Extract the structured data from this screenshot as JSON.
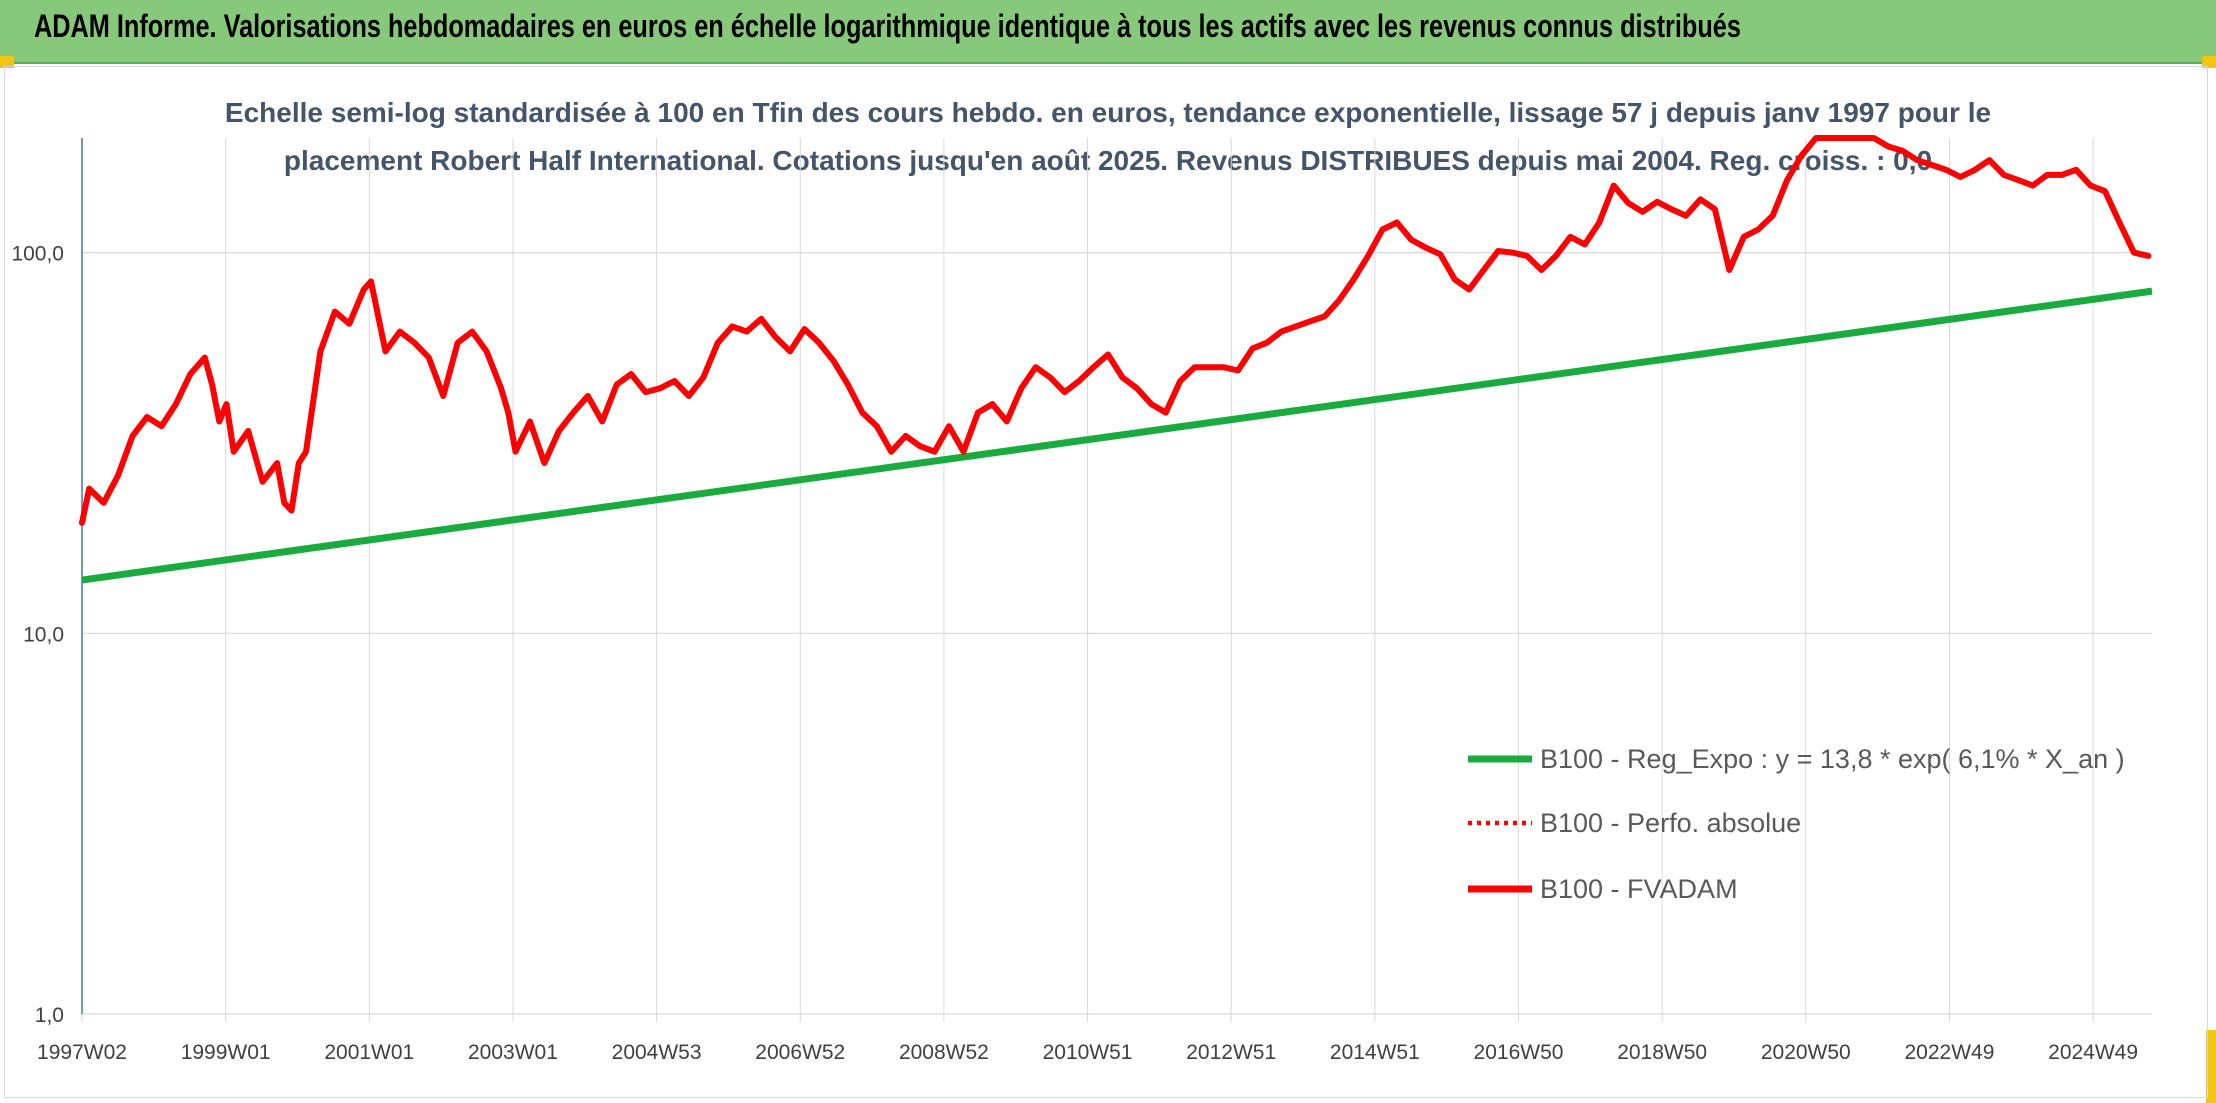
{
  "header": {
    "title": "ADAM Informe. Valorisations hebdomadaires en euros en échelle logarithmique identique à tous les actifs avec les revenus connus distribués"
  },
  "colors": {
    "banner": "#87c97a",
    "trend": "#1aab3f",
    "fvadam": "#ff0000",
    "perf": "#ff0000",
    "grid": "#d9d9d9",
    "accent": "#f1c40f"
  },
  "chart_data": {
    "type": "line",
    "subtitle_lines": [
      "Echelle semi-log standardisée à 100 en Tfin des cours hebdo. en euros, tendance exponentielle, lissage 57 j depuis janv 1997 pour le",
      "placement Robert Half International. Cotations jusqu'en août 2025. Revenus DISTRIBUES depuis mai 2004. Reg. croiss. : 0,0"
    ],
    "y_scale": "log",
    "ylim": [
      1,
      200
    ],
    "y_ticks": [
      "1,0",
      "10,0",
      "100,0"
    ],
    "y_tick_values": [
      1,
      10,
      100
    ],
    "x_tick_labels": [
      "1997W02",
      "1999W01",
      "2001W01",
      "2003W01",
      "2004W53",
      "2006W52",
      "2008W52",
      "2010W51",
      "2012W51",
      "2014W51",
      "2016W50",
      "2018W50",
      "2020W50",
      "2022W49",
      "2024W49"
    ],
    "xlim": [
      1997.0,
      2025.65
    ],
    "legend": [
      "B100 - Reg_Expo : y = 13,8 * exp( 6,1% *  X_an )",
      "B100 - Perfo. absolue",
      "B100 - FVADAM"
    ],
    "legend_position": "right",
    "trend": {
      "a": 13.8,
      "rate": 0.061
    },
    "series": [
      {
        "name": "B100 - FVADAM",
        "x": [
          1997.0,
          1997.1,
          1997.3,
          1997.5,
          1997.7,
          1997.9,
          1998.1,
          1998.3,
          1998.5,
          1998.7,
          1998.8,
          1998.9,
          1999.0,
          1999.1,
          1999.3,
          1999.5,
          1999.7,
          1999.8,
          1999.9,
          2000.0,
          2000.1,
          2000.3,
          2000.5,
          2000.7,
          2000.9,
          2001.0,
          2001.2,
          2001.4,
          2001.6,
          2001.8,
          2002.0,
          2002.2,
          2002.4,
          2002.6,
          2002.8,
          2002.9,
          2003.0,
          2003.2,
          2003.4,
          2003.6,
          2003.8,
          2004.0,
          2004.2,
          2004.4,
          2004.6,
          2004.8,
          2005.0,
          2005.2,
          2005.4,
          2005.6,
          2005.8,
          2006.0,
          2006.2,
          2006.4,
          2006.6,
          2006.8,
          2007.0,
          2007.2,
          2007.4,
          2007.6,
          2007.8,
          2008.0,
          2008.2,
          2008.4,
          2008.6,
          2008.8,
          2009.0,
          2009.2,
          2009.4,
          2009.6,
          2009.8,
          2010.0,
          2010.2,
          2010.4,
          2010.6,
          2010.8,
          2011.0,
          2011.2,
          2011.4,
          2011.6,
          2011.8,
          2012.0,
          2012.2,
          2012.4,
          2012.6,
          2012.8,
          2013.0,
          2013.2,
          2013.4,
          2013.6,
          2013.8,
          2014.0,
          2014.2,
          2014.4,
          2014.6,
          2014.8,
          2015.0,
          2015.2,
          2015.4,
          2015.6,
          2015.8,
          2016.0,
          2016.2,
          2016.4,
          2016.6,
          2016.8,
          2017.0,
          2017.2,
          2017.4,
          2017.6,
          2017.8,
          2018.0,
          2018.2,
          2018.4,
          2018.6,
          2018.8,
          2019.0,
          2019.2,
          2019.4,
          2019.6,
          2019.8,
          2020.0,
          2020.2,
          2020.4,
          2020.6,
          2020.8,
          2021.0,
          2021.2,
          2021.4,
          2021.6,
          2021.8,
          2022.0,
          2022.2,
          2022.4,
          2022.6,
          2022.8,
          2023.0,
          2023.2,
          2023.4,
          2023.6,
          2023.8,
          2024.0,
          2024.2,
          2024.4,
          2024.6,
          2024.8,
          2025.0,
          2025.2,
          2025.4,
          2025.6
        ],
        "values": [
          19.5,
          24,
          22,
          26,
          33,
          37,
          35,
          40,
          48,
          53,
          45,
          36,
          40,
          30,
          34,
          25,
          28,
          22,
          21,
          28,
          30,
          55,
          70,
          65,
          80,
          84,
          55,
          62,
          58,
          53,
          42,
          58,
          62,
          55,
          44,
          38,
          30,
          36,
          28,
          34,
          38,
          42,
          36,
          45,
          48,
          43,
          44,
          46,
          42,
          47,
          58,
          64,
          62,
          67,
          60,
          55,
          63,
          58,
          52,
          45,
          38,
          35,
          30,
          33,
          31,
          30,
          35,
          30,
          38,
          40,
          36,
          44,
          50,
          47,
          43,
          46,
          50,
          54,
          47,
          44,
          40,
          38,
          46,
          50,
          50,
          50,
          49,
          56,
          58,
          62,
          64,
          66,
          68,
          75,
          85,
          98,
          115,
          120,
          108,
          103,
          99,
          85,
          80,
          90,
          101,
          100,
          98,
          90,
          98,
          110,
          105,
          120,
          150,
          135,
          128,
          136,
          130,
          125,
          138,
          130,
          90,
          110,
          115,
          125,
          155,
          180,
          200,
          200,
          205,
          210,
          200,
          190,
          185,
          175,
          170,
          165,
          158,
          165,
          175,
          160,
          155,
          150,
          160,
          160,
          165,
          150,
          145,
          120,
          100,
          98
        ]
      }
    ]
  }
}
